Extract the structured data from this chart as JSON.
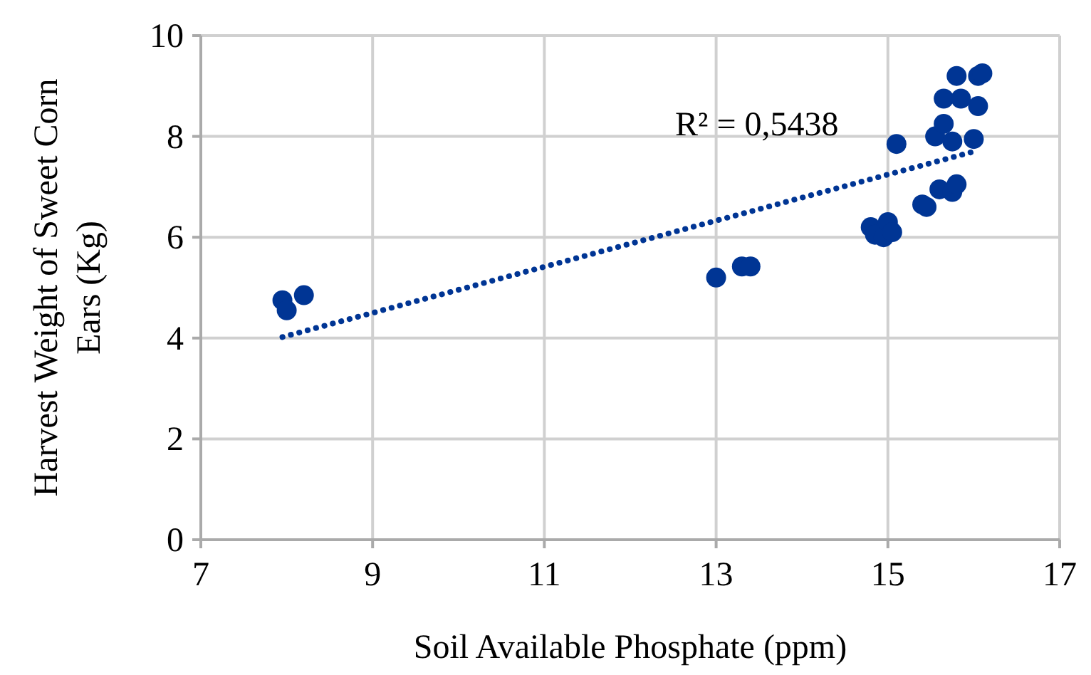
{
  "chart_data": {
    "type": "scatter",
    "xlabel": "Soil Available Phosphate (ppm)",
    "ylabel": "Harvest Weight of Sweet Corn Ears (Kg)",
    "xlim": [
      7,
      17
    ],
    "xticks": [
      7,
      9,
      11,
      13,
      15,
      17
    ],
    "ylim": [
      0,
      10
    ],
    "yticks": [
      0,
      2,
      4,
      6,
      8,
      10
    ],
    "grid": true,
    "annotations": [
      "R² = 0,5438"
    ],
    "series": [
      {
        "marker": "circle",
        "color": "#003594",
        "x": [
          7.95,
          8.0,
          8.2,
          13.0,
          13.3,
          13.4,
          14.8,
          14.85,
          14.95,
          15.0,
          15.05,
          15.4,
          15.45,
          15.6,
          15.75,
          15.8,
          15.1,
          15.55,
          15.65,
          15.75,
          16.0,
          15.65,
          15.85,
          16.05,
          15.8,
          16.05,
          16.1
        ],
        "values": [
          4.75,
          4.55,
          4.85,
          5.2,
          5.42,
          5.42,
          6.2,
          6.05,
          6.0,
          6.3,
          6.1,
          6.65,
          6.6,
          6.95,
          6.9,
          7.05,
          7.85,
          8.0,
          8.25,
          7.9,
          7.95,
          8.75,
          8.75,
          8.6,
          9.2,
          9.2,
          9.25
        ]
      },
      {
        "type": "line",
        "color": "#003594",
        "line_style": "dotted",
        "x": [
          7.95,
          16.0
        ],
        "values": [
          4.02,
          7.7
        ]
      }
    ]
  }
}
